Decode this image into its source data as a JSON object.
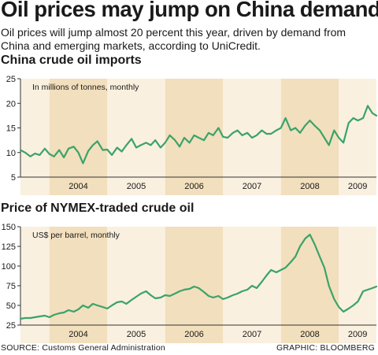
{
  "headline": "Oil prices may jump on China demand",
  "dek": "Oil prices will jump almost 20 percent this year, driven by demand from China and emerging markets, according to UniCredit.",
  "footer": {
    "source": "SOURCE: Customs General Administration",
    "credit": "GRAPHIC: BLOOMBERG"
  },
  "colors": {
    "line": "#3aa36a",
    "band_dark": "#f2dfbd",
    "band_light": "#faf0df",
    "axis": "#333333",
    "text": "#1a1a1a"
  },
  "chart_data": [
    {
      "type": "line",
      "title": "China crude oil imports",
      "annotation": "In millions of tonnes, monthly",
      "xlabel": "",
      "ylabel": "",
      "categories": [
        "2004",
        "2005",
        "2006",
        "2007",
        "2008",
        "2009"
      ],
      "x_range": [
        2003.5,
        2009.65
      ],
      "ylim": [
        5,
        25
      ],
      "yticks": [
        5,
        10,
        15,
        20,
        25
      ],
      "grid": false,
      "series": [
        {
          "x": [
            2003.5,
            2003.58,
            2003.67,
            2003.75,
            2003.83,
            2003.92,
            2004.0,
            2004.08,
            2004.17,
            2004.25,
            2004.33,
            2004.42,
            2004.5,
            2004.58,
            2004.67,
            2004.75,
            2004.83,
            2004.92,
            2005.0,
            2005.08,
            2005.17,
            2005.25,
            2005.33,
            2005.42,
            2005.5,
            2005.58,
            2005.67,
            2005.75,
            2005.83,
            2005.92,
            2006.0,
            2006.08,
            2006.17,
            2006.25,
            2006.33,
            2006.42,
            2006.5,
            2006.58,
            2006.67,
            2006.75,
            2006.83,
            2006.92,
            2007.0,
            2007.08,
            2007.17,
            2007.25,
            2007.33,
            2007.42,
            2007.5,
            2007.58,
            2007.67,
            2007.75,
            2007.83,
            2007.92,
            2008.0,
            2008.08,
            2008.17,
            2008.25,
            2008.33,
            2008.42,
            2008.5,
            2008.58,
            2008.67,
            2008.75,
            2008.83,
            2008.92,
            2009.0,
            2009.08,
            2009.17,
            2009.25,
            2009.33,
            2009.42,
            2009.5,
            2009.58,
            2009.65
          ],
          "values": [
            10.5,
            10.0,
            9.2,
            9.8,
            9.5,
            10.8,
            9.7,
            9.2,
            10.5,
            9.0,
            10.8,
            11.2,
            10.0,
            7.8,
            10.3,
            11.5,
            12.3,
            10.5,
            10.6,
            9.5,
            11.0,
            10.2,
            11.5,
            12.8,
            11.0,
            11.5,
            12.0,
            11.5,
            12.5,
            11.0,
            12.0,
            13.5,
            12.5,
            11.2,
            13.0,
            12.0,
            13.5,
            13.0,
            12.5,
            14.0,
            13.5,
            15.0,
            13.2,
            13.0,
            14.0,
            14.5,
            13.5,
            14.0,
            13.0,
            13.5,
            14.5,
            13.8,
            13.8,
            14.5,
            15.0,
            17.0,
            14.5,
            15.0,
            14.0,
            15.5,
            16.5,
            15.5,
            14.5,
            13.0,
            11.5,
            14.5,
            13.0,
            12.0,
            16.0,
            17.0,
            16.5,
            17.0,
            19.5,
            18.0,
            17.5
          ]
        }
      ]
    },
    {
      "type": "line",
      "title": "Price of NYMEX-traded crude oil",
      "annotation": "US$ per barrel, monthly",
      "xlabel": "",
      "ylabel": "",
      "categories": [
        "2004",
        "2005",
        "2006",
        "2007",
        "2008",
        "2009"
      ],
      "x_range": [
        2003.5,
        2009.65
      ],
      "ylim": [
        25,
        150
      ],
      "yticks": [
        25,
        50,
        75,
        100,
        125,
        150
      ],
      "grid": false,
      "series": [
        {
          "x": [
            2003.5,
            2003.58,
            2003.67,
            2003.75,
            2003.83,
            2003.92,
            2004.0,
            2004.08,
            2004.17,
            2004.25,
            2004.33,
            2004.42,
            2004.5,
            2004.58,
            2004.67,
            2004.75,
            2004.83,
            2004.92,
            2005.0,
            2005.08,
            2005.17,
            2005.25,
            2005.33,
            2005.42,
            2005.5,
            2005.58,
            2005.67,
            2005.75,
            2005.83,
            2005.92,
            2006.0,
            2006.08,
            2006.17,
            2006.25,
            2006.33,
            2006.42,
            2006.5,
            2006.58,
            2006.67,
            2006.75,
            2006.83,
            2006.92,
            2007.0,
            2007.08,
            2007.17,
            2007.25,
            2007.33,
            2007.42,
            2007.5,
            2007.58,
            2007.67,
            2007.75,
            2007.83,
            2007.92,
            2008.0,
            2008.08,
            2008.17,
            2008.25,
            2008.33,
            2008.42,
            2008.5,
            2008.58,
            2008.67,
            2008.75,
            2008.83,
            2008.92,
            2009.0,
            2009.08,
            2009.17,
            2009.25,
            2009.33,
            2009.42,
            2009.5,
            2009.58,
            2009.65
          ],
          "values": [
            33,
            34,
            34,
            35,
            36,
            37,
            35,
            38,
            40,
            41,
            44,
            42,
            45,
            50,
            47,
            52,
            50,
            48,
            46,
            50,
            54,
            55,
            52,
            57,
            61,
            65,
            68,
            63,
            59,
            60,
            63,
            62,
            65,
            68,
            70,
            71,
            74,
            72,
            67,
            62,
            60,
            62,
            58,
            60,
            63,
            65,
            68,
            70,
            75,
            72,
            80,
            88,
            95,
            92,
            95,
            98,
            105,
            112,
            125,
            135,
            140,
            128,
            112,
            98,
            75,
            58,
            48,
            42,
            46,
            50,
            55,
            68,
            70,
            72,
            74
          ]
        }
      ]
    }
  ]
}
